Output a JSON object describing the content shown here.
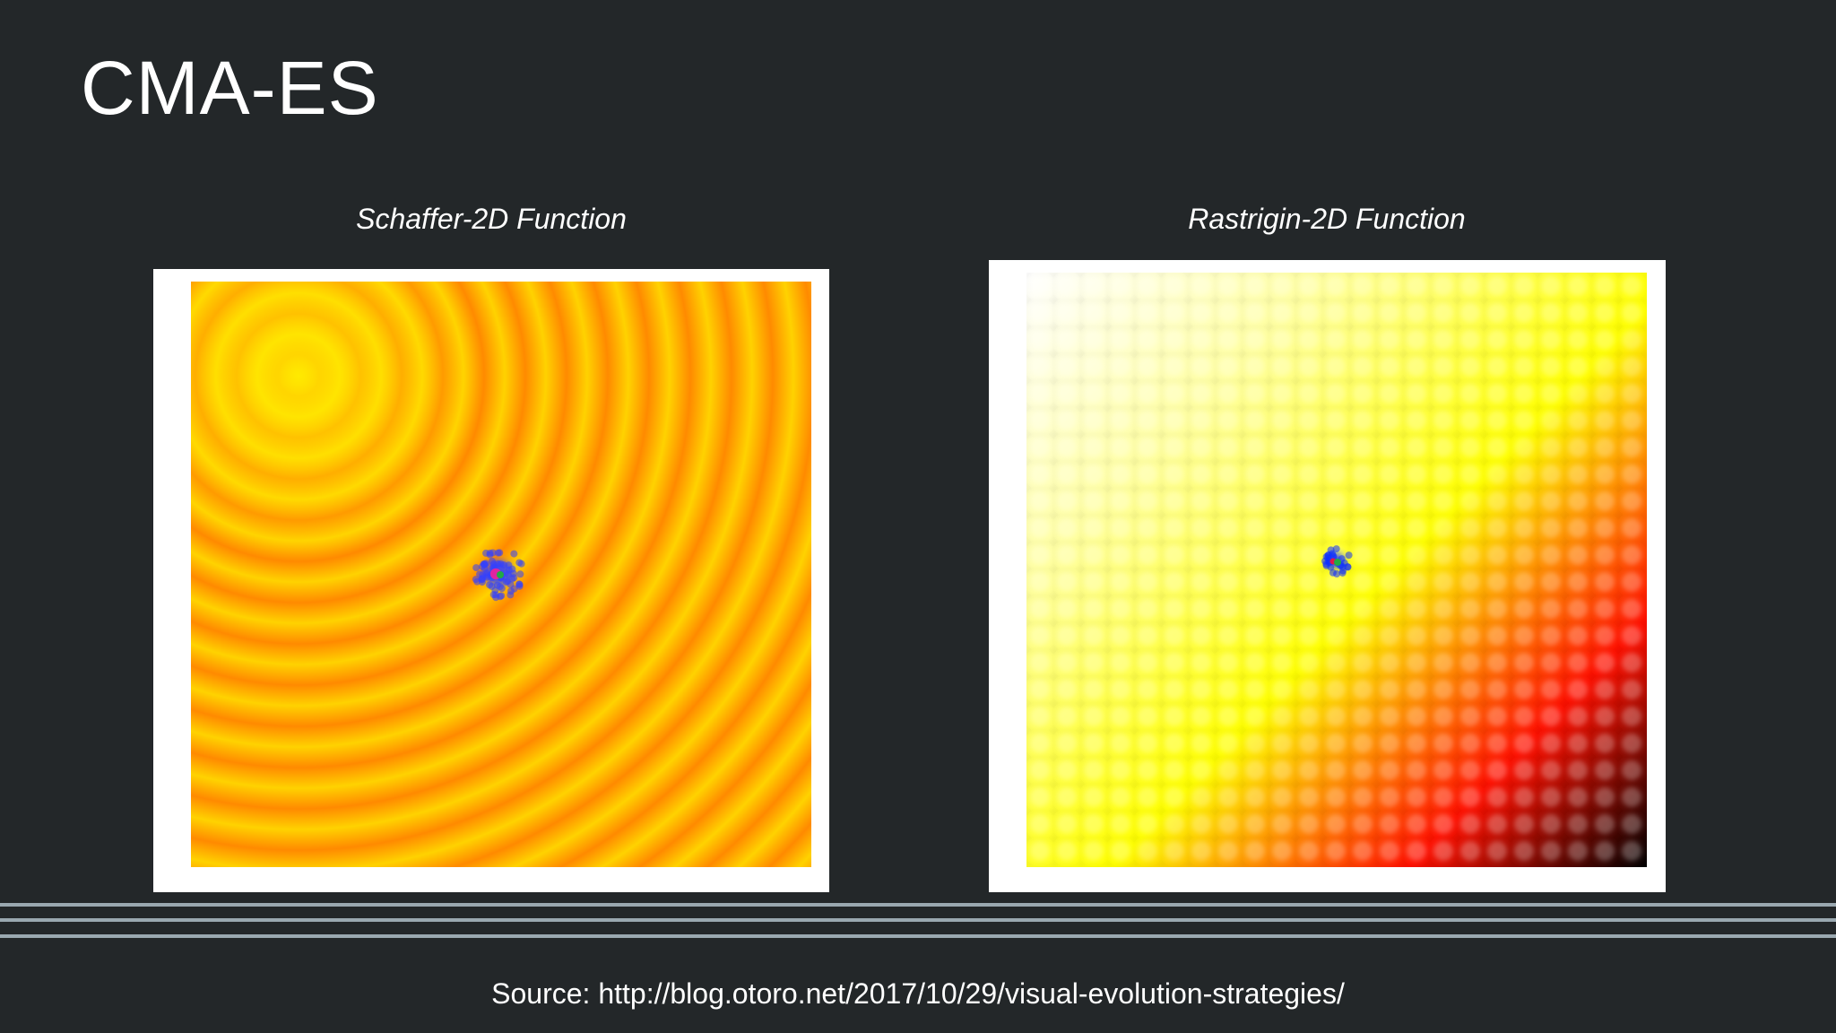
{
  "slide": {
    "title": "CMA-ES",
    "source": "Source: http://blog.otoro.net/2017/10/29/visual-evolution-strategies/"
  },
  "panels": [
    {
      "caption": "Schaffer-2D Function",
      "colors": {
        "light": "#ffd200",
        "dark": "#ff8a00",
        "center": "#ffee00"
      },
      "population": {
        "cluster": "#3340ff",
        "best": "#ff2090",
        "mean": "#22aa44"
      }
    },
    {
      "caption": "Rastrigin-2D Function",
      "colors": {
        "light": "#ffffff",
        "mid": "#ffff00",
        "hot": "#ff1000",
        "dark": "#000000"
      },
      "population": {
        "cluster": "#1030ff",
        "best": "#ff1030",
        "mean": "#22aa44"
      }
    }
  ]
}
